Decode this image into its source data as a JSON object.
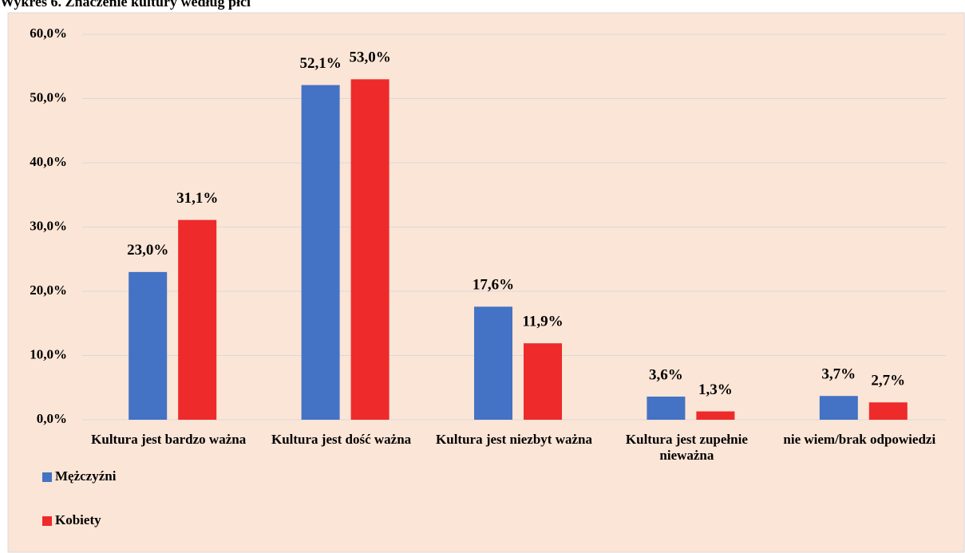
{
  "chart_data": {
    "type": "bar",
    "title": "Wykres 6. Znaczenie kultury według płci",
    "categories": [
      "Kultura jest bardzo ważna",
      "Kultura jest dość ważna",
      "Kultura jest niezbyt ważna",
      "Kultura jest zupełnie nieważna",
      "nie wiem/brak odpowiedzi"
    ],
    "series": [
      {
        "name": "Mężczyźni",
        "color": "#4472c4",
        "values": [
          23.0,
          52.1,
          17.6,
          3.6,
          3.7
        ],
        "value_labels": [
          "23,0%",
          "52,1%",
          "17,6%",
          "3,6%",
          "3,7%"
        ]
      },
      {
        "name": "Kobiety",
        "color": "#ee2a2a",
        "values": [
          31.1,
          53.0,
          11.9,
          1.3,
          2.7
        ],
        "value_labels": [
          "31,1%",
          "53,0%",
          "11,9%",
          "1,3%",
          "2,7%"
        ]
      }
    ],
    "ylim": [
      0,
      60
    ],
    "yticks": [
      {
        "value": 0,
        "label": "0,0%"
      },
      {
        "value": 10,
        "label": "10,0%"
      },
      {
        "value": 20,
        "label": "20,0%"
      },
      {
        "value": 30,
        "label": "30,0%"
      },
      {
        "value": 40,
        "label": "40,0%"
      },
      {
        "value": 50,
        "label": "50,0%"
      },
      {
        "value": 60,
        "label": "60,0%"
      }
    ],
    "grid": true,
    "legend": "bottom-left"
  }
}
